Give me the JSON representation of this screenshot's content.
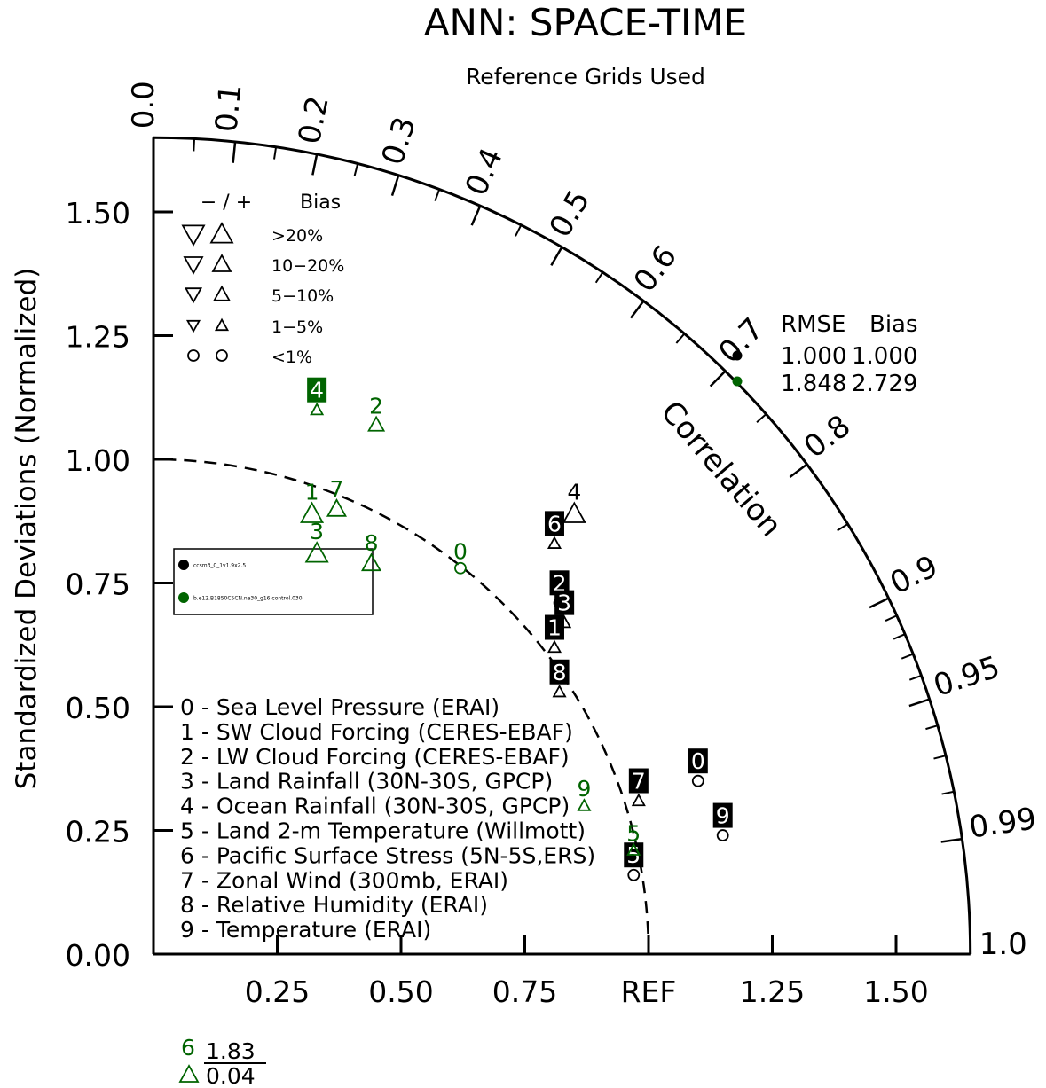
{
  "chart_data": {
    "type": "scatter",
    "subtype": "taylor-diagram",
    "title": "ANN: SPACE-TIME",
    "subtitle": "Reference Grids Used",
    "ylabel": "Standardized Deviations (Normalized)",
    "arc_label": "Correlation",
    "xlim": [
      0,
      1.65
    ],
    "ylim": [
      0,
      1.65
    ],
    "std_ticks": [
      "0.00",
      "0.25",
      "0.50",
      "0.75",
      "1.00",
      "1.25",
      "1.50"
    ],
    "x_tick_labels": [
      {
        "value": 0.25,
        "label": "0.25"
      },
      {
        "value": 0.5,
        "label": "0.50"
      },
      {
        "value": 0.75,
        "label": "0.75"
      },
      {
        "value": 1.0,
        "label": "REF"
      },
      {
        "value": 1.25,
        "label": "1.25"
      },
      {
        "value": 1.5,
        "label": "1.50"
      }
    ],
    "corr_ticks": [
      "0.0",
      "0.1",
      "0.2",
      "0.3",
      "0.4",
      "0.5",
      "0.6",
      "0.7",
      "0.8",
      "0.9",
      "0.95",
      "0.99",
      "1.0"
    ],
    "bias_legend": {
      "header_sign": "− / +",
      "header_label": "Bias",
      "rows": [
        {
          "label": ">20%",
          "level": 4
        },
        {
          "label": "10−20%",
          "level": 3
        },
        {
          "label": "5−10%",
          "level": 2
        },
        {
          "label": "1−5%",
          "level": 1
        },
        {
          "label": "<1%",
          "level": 0
        }
      ]
    },
    "summary": {
      "header_rmse": "RMSE",
      "header_bias": "Bias",
      "rows": [
        {
          "rmse": "1.000",
          "bias": "1.000",
          "color": "#000000"
        },
        {
          "rmse": "1.848",
          "bias": "2.729",
          "color": "#006400"
        }
      ]
    },
    "cases_legend": [
      {
        "name": "ccsm3_0_1v1.9x2.5",
        "color": "#000000"
      },
      {
        "name": "b.e12.B1850C5CN.ne30_g16.control.030",
        "color": "#006400"
      }
    ],
    "variables": [
      "0 - Sea Level Pressure (ERAI)",
      "1 - SW Cloud Forcing (CERES-EBAF)",
      "2 - LW Cloud Forcing (CERES-EBAF)",
      "3 - Land Rainfall (30N-30S, GPCP)",
      "4 - Ocean Rainfall (30N-30S, GPCP)",
      "5 - Land 2-m Temperature (Willmott)",
      "6 - Pacific Surface Stress (5N-5S,ERS)",
      "7 - Zonal Wind (300mb, ERAI)",
      "8 - Relative Humidity (ERAI)",
      "9 - Temperature (ERAI)"
    ],
    "series": [
      {
        "name": "ccsm3_0_1v1.9x2.5",
        "color": "#000000",
        "points": [
          {
            "id": "0",
            "x": 1.1,
            "y": 0.35,
            "marker": "circle",
            "size": 0,
            "label_box": true
          },
          {
            "id": "1",
            "x": 0.81,
            "y": 0.62,
            "marker": "triangle-up",
            "size": 1,
            "label_box": true
          },
          {
            "id": "2",
            "x": 0.82,
            "y": 0.71,
            "marker": "circle",
            "size": 0,
            "label_box": true
          },
          {
            "id": "3",
            "x": 0.83,
            "y": 0.67,
            "marker": "triangle-up",
            "size": 1,
            "label_box": true
          },
          {
            "id": "4",
            "x": 0.85,
            "y": 0.89,
            "marker": "triangle-up",
            "size": 4,
            "label_box": false
          },
          {
            "id": "5",
            "x": 0.97,
            "y": 0.16,
            "marker": "circle",
            "size": 0,
            "label_box": true
          },
          {
            "id": "6",
            "x": 0.81,
            "y": 0.83,
            "marker": "triangle-up",
            "size": 1,
            "label_box": true
          },
          {
            "id": "7",
            "x": 0.98,
            "y": 0.31,
            "marker": "triangle-up",
            "size": 1,
            "label_box": true
          },
          {
            "id": "8",
            "x": 0.82,
            "y": 0.53,
            "marker": "triangle-up",
            "size": 1,
            "label_box": true
          },
          {
            "id": "9",
            "x": 1.15,
            "y": 0.24,
            "marker": "circle",
            "size": 0,
            "label_box": true
          }
        ]
      },
      {
        "name": "b.e12.B1850C5CN.ne30_g16.control.030",
        "color": "#006400",
        "points": [
          {
            "id": "0",
            "x": 0.62,
            "y": 0.78,
            "marker": "circle",
            "size": 0,
            "label_box": false
          },
          {
            "id": "1",
            "x": 0.32,
            "y": 0.89,
            "marker": "triangle-up",
            "size": 4,
            "label_box": false
          },
          {
            "id": "2",
            "x": 0.45,
            "y": 1.07,
            "marker": "triangle-up",
            "size": 2,
            "label_box": false
          },
          {
            "id": "3",
            "x": 0.33,
            "y": 0.81,
            "marker": "triangle-up",
            "size": 4,
            "label_box": false
          },
          {
            "id": "4",
            "x": 0.33,
            "y": 1.1,
            "marker": "triangle-up",
            "size": 1,
            "label_box": true
          },
          {
            "id": "5",
            "x": 0.97,
            "y": 0.21,
            "marker": "triangle-up",
            "size": 1,
            "label_box": false
          },
          {
            "id": "7",
            "x": 0.37,
            "y": 0.9,
            "marker": "triangle-up",
            "size": 3,
            "label_box": false
          },
          {
            "id": "8",
            "x": 0.44,
            "y": 0.79,
            "marker": "triangle-up",
            "size": 3,
            "label_box": false
          },
          {
            "id": "9",
            "x": 0.87,
            "y": 0.3,
            "marker": "triangle-up",
            "size": 1,
            "label_box": false
          }
        ]
      }
    ],
    "outlier": {
      "id": "6",
      "color": "#006400",
      "marker": "triangle-up",
      "std": "1.83",
      "corr": "0.04"
    }
  }
}
